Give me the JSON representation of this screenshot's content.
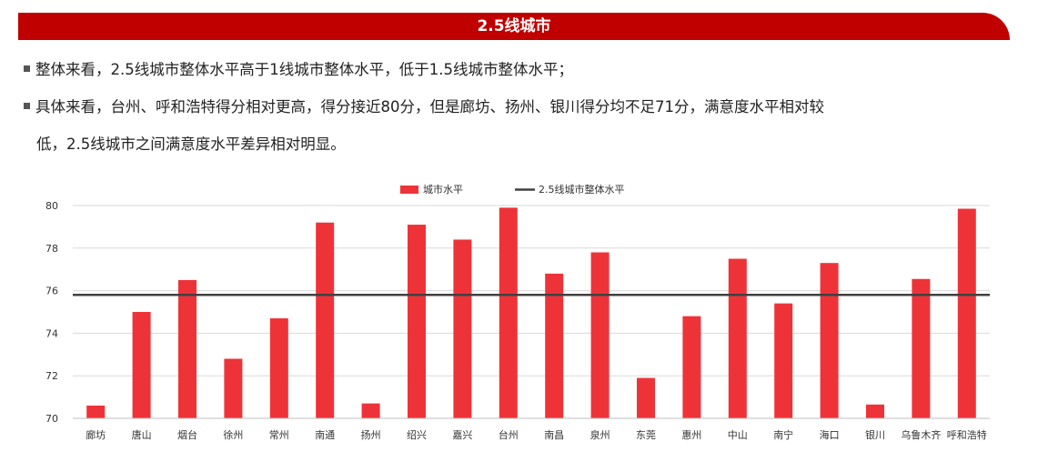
{
  "header": {
    "title": "2.5线城市"
  },
  "bullets": [
    {
      "text": "整体来看，2.5线城市整体水平高于1线城市整体水平，低于1.5线城市整体水平；"
    },
    {
      "line1": "具体来看，台州、呼和浩特得分相对更高，得分接近80分，但是廊坊、扬州、银川得分均不足71分，满意度水平相对较",
      "line2": "低，2.5线城市之间满意度水平差异相对明显。"
    }
  ],
  "colors": {
    "banner": "#c00000",
    "bar": "#ee3338",
    "reference_line": "#404040"
  },
  "chart_data": {
    "type": "bar",
    "categories": [
      "廊坊",
      "唐山",
      "烟台",
      "徐州",
      "常州",
      "南通",
      "扬州",
      "绍兴",
      "嘉兴",
      "台州",
      "南昌",
      "泉州",
      "东莞",
      "惠州",
      "中山",
      "南宁",
      "海口",
      "银川",
      "乌鲁木齐",
      "呼和浩特"
    ],
    "series": [
      {
        "name": "城市水平",
        "values": [
          70.6,
          75.0,
          76.5,
          72.8,
          74.7,
          79.2,
          70.7,
          79.1,
          78.4,
          79.9,
          76.8,
          77.8,
          71.9,
          74.8,
          77.5,
          75.4,
          77.3,
          70.65,
          76.55,
          79.85
        ]
      }
    ],
    "reference_line": {
      "name": "2.5线城市整体水平",
      "value": 75.8
    },
    "ylim": [
      70,
      80
    ],
    "yticks": [
      70,
      72,
      74,
      76,
      78,
      80
    ],
    "xlabel": "",
    "ylabel": "",
    "grid": true,
    "legend": "top-center"
  }
}
